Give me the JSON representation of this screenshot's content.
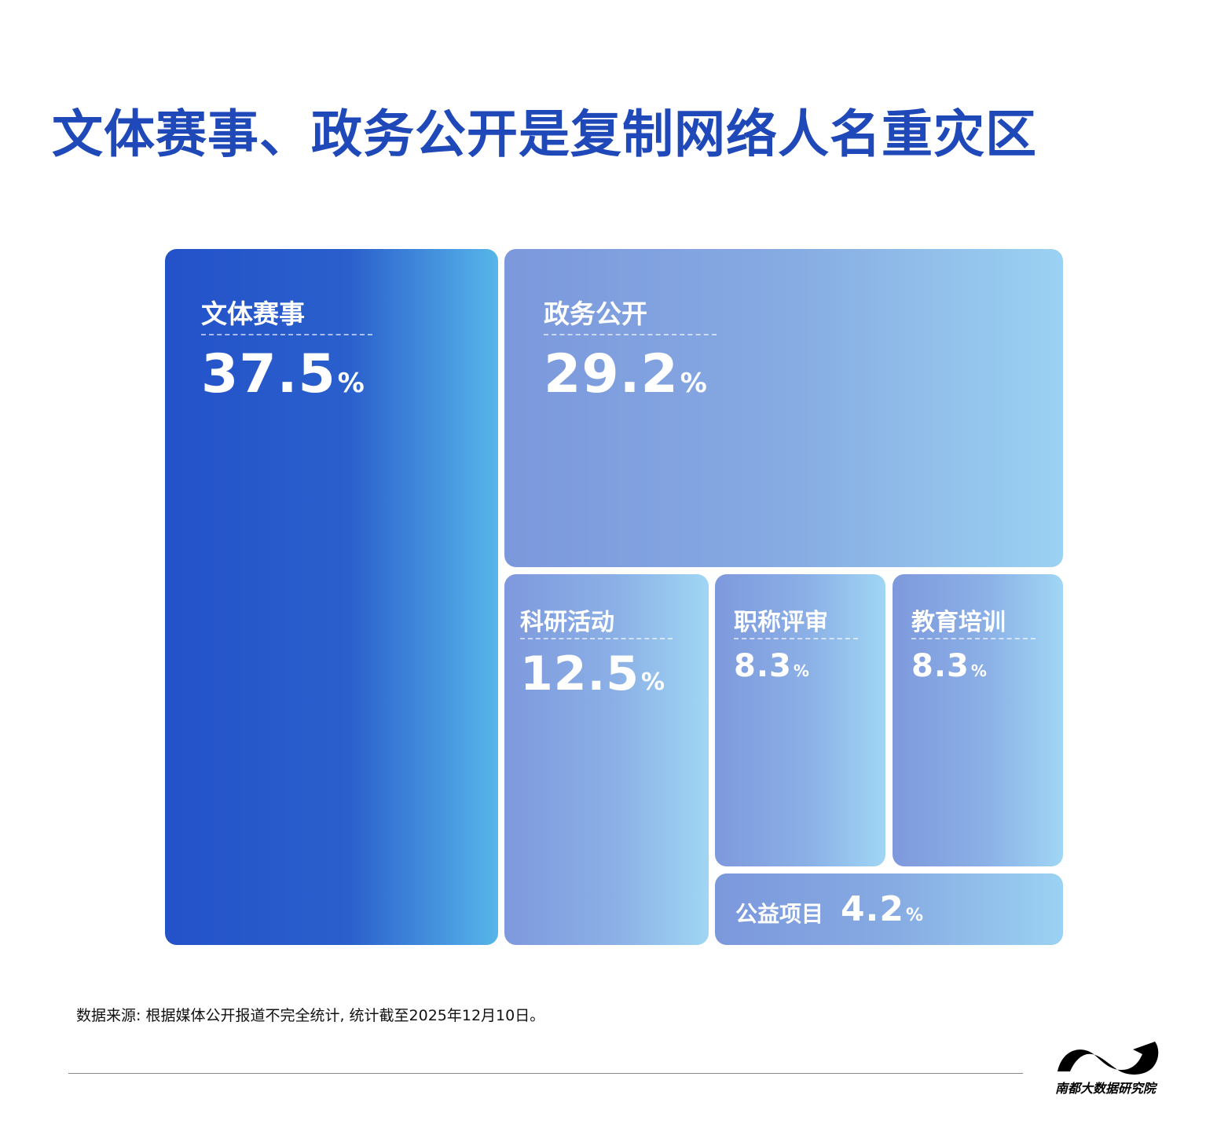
{
  "title": "文体赛事、政务公开是复制网络人名重灾区",
  "chart_data": {
    "type": "treemap",
    "unit": "%",
    "items": [
      {
        "name": "文体赛事",
        "value": 37.5
      },
      {
        "name": "政务公开",
        "value": 29.2
      },
      {
        "name": "科研活动",
        "value": 12.5
      },
      {
        "name": "职称评审",
        "value": 8.3
      },
      {
        "name": "教育培训",
        "value": 8.3
      },
      {
        "name": "公益项目",
        "value": 4.2
      }
    ]
  },
  "source": "数据来源: 根据媒体公开报道不完全统计, 统计截至2025年12月10日。",
  "brand": "南都大数据研究院",
  "colors": {
    "title": "#1f48b8",
    "primary_tile": "#2452c9",
    "light_tile": "#86aae2"
  }
}
